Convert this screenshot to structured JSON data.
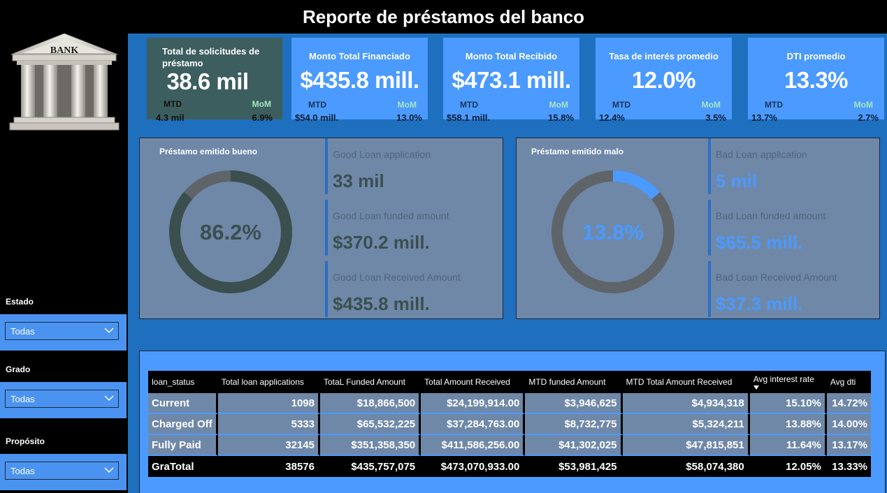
{
  "header": {
    "title": "Reporte de préstamos del banco"
  },
  "logo": {
    "text": "BANK"
  },
  "filters": [
    {
      "label": "Estado",
      "value": "Todas"
    },
    {
      "label": "Grado",
      "value": "Todas"
    },
    {
      "label": "Propósito",
      "value": "Todas"
    }
  ],
  "kpis": [
    {
      "name": "Total de solicitudes de préstamo",
      "value": "38.6 mil",
      "mtd_label": "MTD",
      "mom_label": "MoM",
      "mtd_value": "4.3 mil",
      "mom_value": "6.9%"
    },
    {
      "name": "Monto Total Financiado",
      "value": "$435.8 mill.",
      "mtd_label": "MTD",
      "mom_label": "MoM",
      "mtd_value": "$54.0 mill.",
      "mom_value": "13.0%"
    },
    {
      "name": "Monto Total Recibido",
      "value": "$473.1 mill.",
      "mtd_label": "MTD",
      "mom_label": "MoM",
      "mtd_value": "$58.1 mill.",
      "mom_value": "15.8%"
    },
    {
      "name": "Tasa de interés promedio",
      "value": "12.0%",
      "mtd_label": "MTD",
      "mom_label": "MoM",
      "mtd_value": "12.4%",
      "mom_value": "3.5%"
    },
    {
      "name": "DTI promedio",
      "value": "13.3%",
      "mtd_label": "MTD",
      "mom_label": "MoM",
      "mtd_value": "13.7%",
      "mom_value": "2.7%"
    }
  ],
  "good_panel": {
    "title": "Préstamo emitido bueno",
    "percent_label": "86.2%",
    "percent": 0.862,
    "ring_color": "#3b4f4f",
    "rest_color": "#5f6469",
    "value_color": "#3b4f4f",
    "metrics": [
      {
        "label": "Good Loan application",
        "value": "33 mil"
      },
      {
        "label": "Good Loan funded amount",
        "value": "$370.2 mill."
      },
      {
        "label": "Good Loan Received Amount",
        "value": "$435.8 mill."
      }
    ]
  },
  "bad_panel": {
    "title": "Préstamo emitido malo",
    "percent_label": "13.8%",
    "percent": 0.138,
    "ring_color": "#4b9aff",
    "rest_color": "#5f6469",
    "value_color": "#4b9aff",
    "metrics": [
      {
        "label": "Bad Loan application",
        "value": "5 mil"
      },
      {
        "label": "Bad Loan funded amount",
        "value": "$65.5 mill."
      },
      {
        "label": "Bad Loan Received Amount",
        "value": "$37.3 mill."
      }
    ]
  },
  "table": {
    "columns": [
      "loan_status",
      "Total loan applications",
      "TotaL Funded Amount",
      "Total Amount Received",
      "MTD funded Amount",
      "MTD Total Amount Received",
      "Avg interest rate",
      "Avg dti"
    ],
    "rows": [
      [
        "Current",
        "1098",
        "$18,866,500",
        "$24,199,914.00",
        "$3,946,625",
        "$4,934,318",
        "15.10%",
        "14.72%"
      ],
      [
        "Charged Off",
        "5333",
        "$65,532,225",
        "$37,284,763.00",
        "$8,732,775",
        "$5,324,211",
        "13.88%",
        "14.00%"
      ],
      [
        "Fully Paid",
        "32145",
        "$351,358,350",
        "$411,586,256.00",
        "$41,302,025",
        "$47,815,851",
        "11.64%",
        "13.17%"
      ]
    ],
    "total": [
      "GraTotal",
      "38576",
      "$435,757,075",
      "$473,070,933.00",
      "$53,981,425",
      "$58,074,380",
      "12.05%",
      "13.33%"
    ]
  }
}
